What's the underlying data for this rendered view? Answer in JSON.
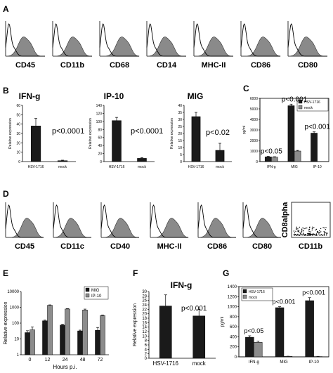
{
  "colors": {
    "dark": "#1a1a1a",
    "gray": "#8c8c8c",
    "fill": "#8a8a8a",
    "axis": "#000000"
  },
  "panelA": {
    "letter": "A",
    "labels": [
      "CD45",
      "CD11b",
      "CD68",
      "CD14",
      "MHC-II",
      "CD86",
      "CD80"
    ]
  },
  "panelD": {
    "letter": "D",
    "labels": [
      "CD45",
      "CD11c",
      "CD40",
      "MHC-II",
      "CD86",
      "CD80"
    ],
    "scatter": {
      "ylabel": "CD8alpha",
      "xlabel": "CD11b"
    }
  },
  "chart_data": [
    {
      "panel": "B1",
      "letter": "B",
      "type": "bar",
      "title": "IFN-g",
      "ylabel": "Relative expression",
      "ylim": [
        0,
        60
      ],
      "ticks": [
        0,
        10,
        20,
        30,
        40,
        50,
        60
      ],
      "categories": [
        "HSV-1716",
        "mock"
      ],
      "values": [
        38,
        1
      ],
      "errors": [
        8,
        0.5
      ],
      "annotation": "p<0.0001"
    },
    {
      "panel": "B2",
      "type": "bar",
      "title": "IP-10",
      "ylabel": "Relative expression",
      "ylim": [
        0,
        140
      ],
      "ticks": [
        0,
        20,
        40,
        60,
        80,
        100,
        120,
        140
      ],
      "categories": [
        "HSV-1716",
        "mock"
      ],
      "values": [
        102,
        8
      ],
      "errors": [
        8,
        2
      ],
      "annotation": "p<0.0001"
    },
    {
      "panel": "B3",
      "type": "bar",
      "title": "MIG",
      "ylabel": "Relative expression",
      "ylim": [
        0,
        40
      ],
      "ticks": [
        0,
        5,
        10,
        15,
        20,
        25,
        30,
        35,
        40
      ],
      "categories": [
        "HSV-1716",
        "mock"
      ],
      "values": [
        32,
        8
      ],
      "errors": [
        3,
        5
      ],
      "annotation": "p<0.02"
    },
    {
      "panel": "C",
      "letter": "C",
      "type": "bar",
      "ylabel": "pg/ml",
      "ylim": [
        0,
        6000
      ],
      "ticks": [
        0,
        1000,
        2000,
        3000,
        4000,
        5000,
        6000
      ],
      "categories": [
        "IFN-g",
        "MIG",
        "IP-10"
      ],
      "series": [
        {
          "name": "HSV-1716",
          "values": [
            450,
            5300,
            2700
          ],
          "errors": [
            50,
            150,
            120
          ]
        },
        {
          "name": "mock",
          "values": [
            420,
            1000,
            0
          ],
          "errors": [
            40,
            60,
            0
          ]
        }
      ],
      "annotations": [
        "p<0.05",
        "p<0.001",
        "p<0.001"
      ],
      "legend": "top-right"
    },
    {
      "panel": "E",
      "letter": "E",
      "type": "bar",
      "scale": "log",
      "ylabel": "Relative expression",
      "xlabel": "Hours p.i.",
      "ylim": [
        1,
        10000
      ],
      "ticks": [
        1,
        10,
        100,
        1000,
        10000
      ],
      "tick_labels": [
        "1",
        "10",
        "100",
        "1000",
        "10000"
      ],
      "categories": [
        "0",
        "12",
        "24",
        "48",
        "72"
      ],
      "series": [
        {
          "name": "MIG",
          "values": [
            25,
            140,
            75,
            32,
            35
          ],
          "errors": [
            8,
            15,
            10,
            4,
            18
          ]
        },
        {
          "name": "IP-10",
          "values": [
            38,
            1350,
            780,
            680,
            300
          ],
          "errors": [
            20,
            80,
            50,
            90,
            30
          ]
        }
      ],
      "legend": "top-right"
    },
    {
      "panel": "F",
      "letter": "F",
      "type": "bar",
      "title": "IFN-g",
      "ylabel": "Relative expression",
      "ylim": [
        0,
        30
      ],
      "ticks": [
        0,
        2,
        4,
        6,
        8,
        10,
        12,
        14,
        16,
        18,
        20,
        22,
        24,
        26,
        28,
        30
      ],
      "categories": [
        "HSV-1716",
        "mock"
      ],
      "values": [
        23.5,
        19
      ],
      "errors": [
        5,
        3
      ],
      "annotation": "p<0.001"
    },
    {
      "panel": "G",
      "letter": "G",
      "type": "bar",
      "ylabel": "pg/ml",
      "ylim": [
        0,
        1400
      ],
      "ticks": [
        0,
        200,
        400,
        600,
        800,
        1000,
        1200,
        1400
      ],
      "categories": [
        "IFN-g",
        "MIG",
        "IP-10"
      ],
      "series": [
        {
          "name": "HSV-1716",
          "values": [
            390,
            980,
            1120
          ],
          "errors": [
            30,
            20,
            60
          ]
        },
        {
          "name": "mock",
          "values": [
            290,
            10,
            5
          ],
          "errors": [
            20,
            3,
            2
          ]
        }
      ],
      "annotations": [
        "p<0.05",
        "p<0.001",
        "p<0.001"
      ],
      "legend": "top-left"
    }
  ]
}
